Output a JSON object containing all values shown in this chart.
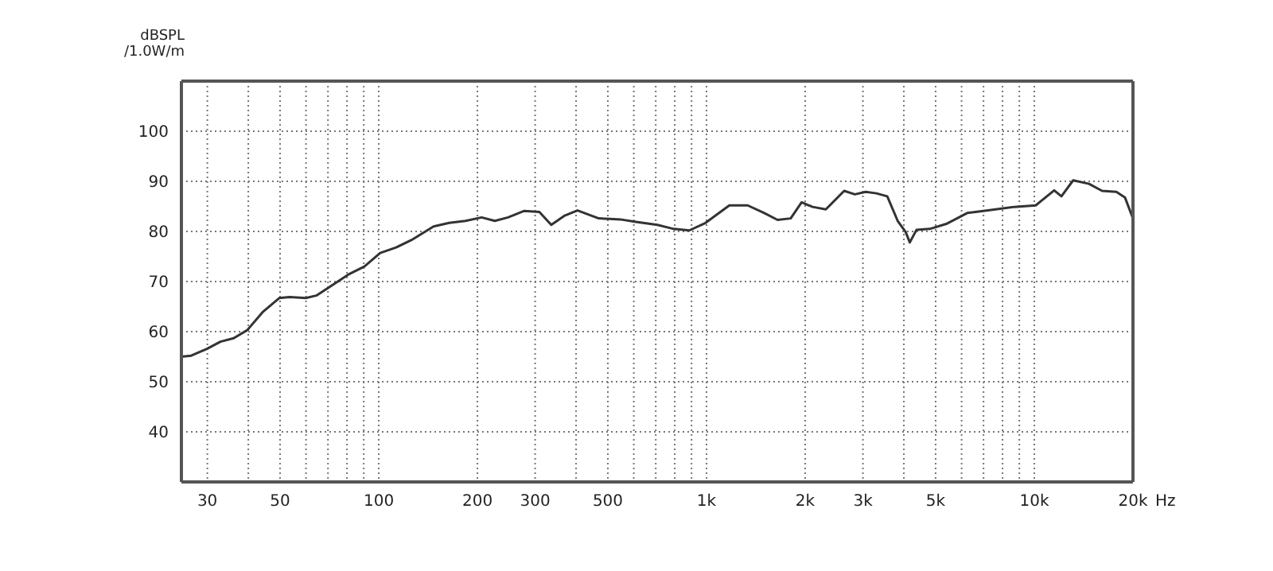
{
  "chart_data": {
    "type": "line",
    "ylabel": "dBSPL\n/1.0W/m",
    "log": "x",
    "grid": true,
    "xlim": [
      25,
      20000
    ],
    "ylim": [
      30,
      110
    ],
    "xticks": [
      30,
      {
        "value": 40,
        "label": null
      },
      50,
      {
        "value": 60,
        "label": null
      },
      {
        "value": 70,
        "label": null
      },
      {
        "value": 80,
        "label": null
      },
      {
        "value": 90,
        "label": null
      },
      100,
      200,
      300,
      {
        "value": 400,
        "label": null
      },
      500,
      {
        "value": 600,
        "label": null
      },
      {
        "value": 700,
        "label": null
      },
      {
        "value": 800,
        "label": null
      },
      {
        "value": 900,
        "label": null
      },
      {
        "value": 1000,
        "label": "1k"
      },
      {
        "value": 2000,
        "label": "2k"
      },
      {
        "value": 3000,
        "label": "3k"
      },
      {
        "value": 4000,
        "label": null
      },
      {
        "value": 5000,
        "label": "5k"
      },
      {
        "value": 6000,
        "label": null
      },
      {
        "value": 7000,
        "label": null
      },
      {
        "value": 8000,
        "label": null
      },
      {
        "value": 9000,
        "label": null
      },
      {
        "value": 10000,
        "label": "10k"
      },
      {
        "value": 20000,
        "label": "20k"
      }
    ],
    "xlabel": "Hz",
    "yticks": [
      40,
      50,
      60,
      70,
      80,
      90,
      100
    ],
    "x": [
      25,
      26.8,
      30,
      32.9,
      36.1,
      39.7,
      44.4,
      49.7,
      53.5,
      59.9,
      64.5,
      72.2,
      80.8,
      90.4,
      101,
      113,
      126,
      147,
      164,
      184,
      206,
      226,
      248,
      278,
      309,
      336,
      368,
      404,
      469,
      546,
      609,
      708,
      794,
      886,
      993,
      1174,
      1335,
      1496,
      1647,
      1806,
      1950,
      2105,
      2312,
      2630,
      2835,
      3060,
      3300,
      3560,
      3830,
      4050,
      4170,
      4370,
      4800,
      5390,
      6260,
      7230,
      8700,
      10100,
      11500,
      12100,
      13140,
      14680,
      16100,
      17800,
      18900,
      20000
    ],
    "series": [
      {
        "color": "#333333",
        "values": [
          55.0,
          55.2,
          56.6,
          58.0,
          58.7,
          60.3,
          64.0,
          66.7,
          66.9,
          66.7,
          67.2,
          69.3,
          71.4,
          73.0,
          75.7,
          76.8,
          78.3,
          81.0,
          81.7,
          82.1,
          82.8,
          82.1,
          82.8,
          84.1,
          83.9,
          81.3,
          83.1,
          84.2,
          82.6,
          82.4,
          81.9,
          81.3,
          80.5,
          80.2,
          81.7,
          85.2,
          85.2,
          83.7,
          82.3,
          82.6,
          85.8,
          84.9,
          84.4,
          88.1,
          87.4,
          87.9,
          87.6,
          87.0,
          82.1,
          79.9,
          77.8,
          80.3,
          80.5,
          81.5,
          83.7,
          84.2,
          84.9,
          85.2,
          88.2,
          87.0,
          90.2,
          89.5,
          88.1,
          87.9,
          86.8,
          82.6
        ]
      }
    ]
  }
}
